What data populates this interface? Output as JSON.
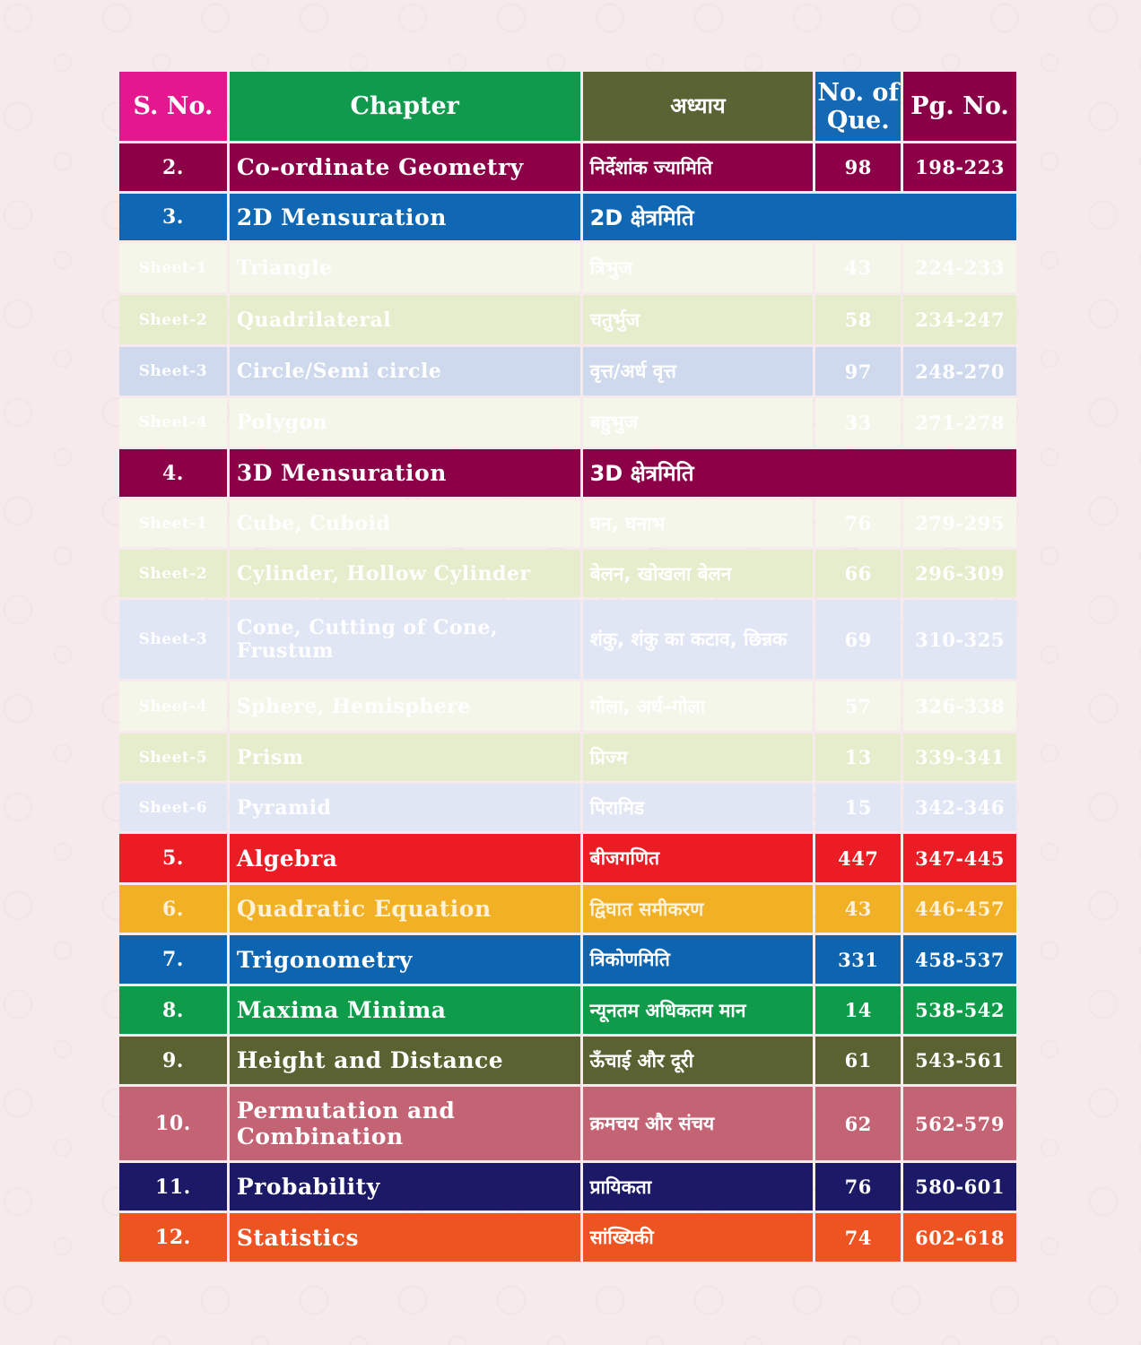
{
  "header": {
    "sno": "S. No.",
    "chapter": "Chapter",
    "hindi": "अध्याय",
    "que": "No. of Que.",
    "pg": "Pg. No.",
    "colors": [
      "#e4178e",
      "#0f9a4e",
      "#5a6334",
      "#1468b4",
      "#8a0047"
    ]
  },
  "rows": [
    {
      "sno": "2.",
      "chapter": "Co-ordinate Geometry",
      "hindi": "निर्देशांक ज्यामिति",
      "que": "98",
      "pg": "198-223",
      "bg": "#8c0047",
      "kind": "main"
    },
    {
      "sno": "3.",
      "chapter": "2D Mensuration",
      "hindi": "2D क्षेत्रमिति",
      "que": "",
      "pg": "",
      "bg": "#1068b4",
      "kind": "section"
    },
    {
      "sno": "Sheet-1",
      "chapter": "Triangle",
      "hindi": "त्रिभुज",
      "que": "43",
      "pg": "224-233",
      "bg": "#f3f6e9",
      "kind": "sheet"
    },
    {
      "sno": "Sheet-2",
      "chapter": "Quadrilateral",
      "hindi": "चतुर्भुज",
      "que": "58",
      "pg": "234-247",
      "bg": "#e5edcc",
      "kind": "sheet"
    },
    {
      "sno": "Sheet-3",
      "chapter": "Circle/Semi circle",
      "hindi": "वृत्त/अर्ध वृत्त",
      "que": "97",
      "pg": "248-270",
      "bg": "#ced9ee",
      "kind": "sheet"
    },
    {
      "sno": "Sheet-4",
      "chapter": "Polygon",
      "hindi": "बहुभुज",
      "que": "33",
      "pg": "271-278",
      "bg": "#f3f6e9",
      "kind": "sheet"
    },
    {
      "sno": "4.",
      "chapter": "3D Mensuration",
      "hindi": "3D क्षेत्रमिति",
      "que": "",
      "pg": "",
      "bg": "#8c0047",
      "kind": "section"
    },
    {
      "sno": "Sheet-1",
      "chapter": "Cube, Cuboid",
      "hindi": "घन, घनाभ",
      "que": "76",
      "pg": "279-295",
      "bg": "#f3f6e9",
      "kind": "sheet"
    },
    {
      "sno": "Sheet-2",
      "chapter": "Cylinder, Hollow Cylinder",
      "hindi": "बेलन, खोखला बेलन",
      "que": "66",
      "pg": "296-309",
      "bg": "#e5edcc",
      "kind": "sheet"
    },
    {
      "sno": "Sheet-3",
      "chapter": "Cone, Cutting of Cone, Frustum",
      "hindi": "शंकु, शंकु का कटाव, छिन्नक",
      "que": "69",
      "pg": "310-325",
      "bg": "#e0e6f4",
      "kind": "sheet"
    },
    {
      "sno": "Sheet-4",
      "chapter": "Sphere, Hemisphere",
      "hindi": "गोला, अर्ध–गोला",
      "que": "57",
      "pg": "326-338",
      "bg": "#f3f6e9",
      "kind": "sheet"
    },
    {
      "sno": "Sheet-5",
      "chapter": "Prism",
      "hindi": "प्रिज्म",
      "que": "13",
      "pg": "339-341",
      "bg": "#e5edcc",
      "kind": "sheet"
    },
    {
      "sno": "Sheet-6",
      "chapter": "Pyramid",
      "hindi": "पिरामिड",
      "que": "15",
      "pg": "342-346",
      "bg": "#e0e6f4",
      "kind": "sheet"
    },
    {
      "sno": "5.",
      "chapter": "Algebra",
      "hindi": "बीजगणित",
      "que": "447",
      "pg": "347-445",
      "bg": "#ec1c24",
      "kind": "main"
    },
    {
      "sno": "6.",
      "chapter": "Quadratic Equation",
      "hindi": "द्विघात समीकरण",
      "que": "43",
      "pg": "446-457",
      "bg": "#f2b025",
      "kind": "main",
      "fg": "#fdf1d8"
    },
    {
      "sno": "7.",
      "chapter": "Trigonometry",
      "hindi": "त्रिकोणमिति",
      "que": "331",
      "pg": "458-537",
      "bg": "#0d64b0",
      "kind": "main"
    },
    {
      "sno": "8.",
      "chapter": "Maxima Minima",
      "hindi": "न्यूनतम अधिकतम मान",
      "que": "14",
      "pg": "538-542",
      "bg": "#0f9c4a",
      "kind": "main"
    },
    {
      "sno": "9.",
      "chapter": "Height and Distance",
      "hindi": "ऊँचाई और दूरी",
      "que": "61",
      "pg": "543-561",
      "bg": "#5a6232",
      "kind": "main"
    },
    {
      "sno": "10.",
      "chapter": "Permutation and Combination",
      "hindi": "क्रमचय और संचय",
      "que": "62",
      "pg": "562-579",
      "bg": "#c46374",
      "kind": "main"
    },
    {
      "sno": "11.",
      "chapter": "Probability",
      "hindi": "प्रायिकता",
      "que": "76",
      "pg": "580-601",
      "bg": "#1c1a66",
      "kind": "main"
    },
    {
      "sno": "12.",
      "chapter": "Statistics",
      "hindi": "सांख्यिकी",
      "que": "74",
      "pg": "602-618",
      "bg": "#ee5322",
      "kind": "main"
    }
  ]
}
